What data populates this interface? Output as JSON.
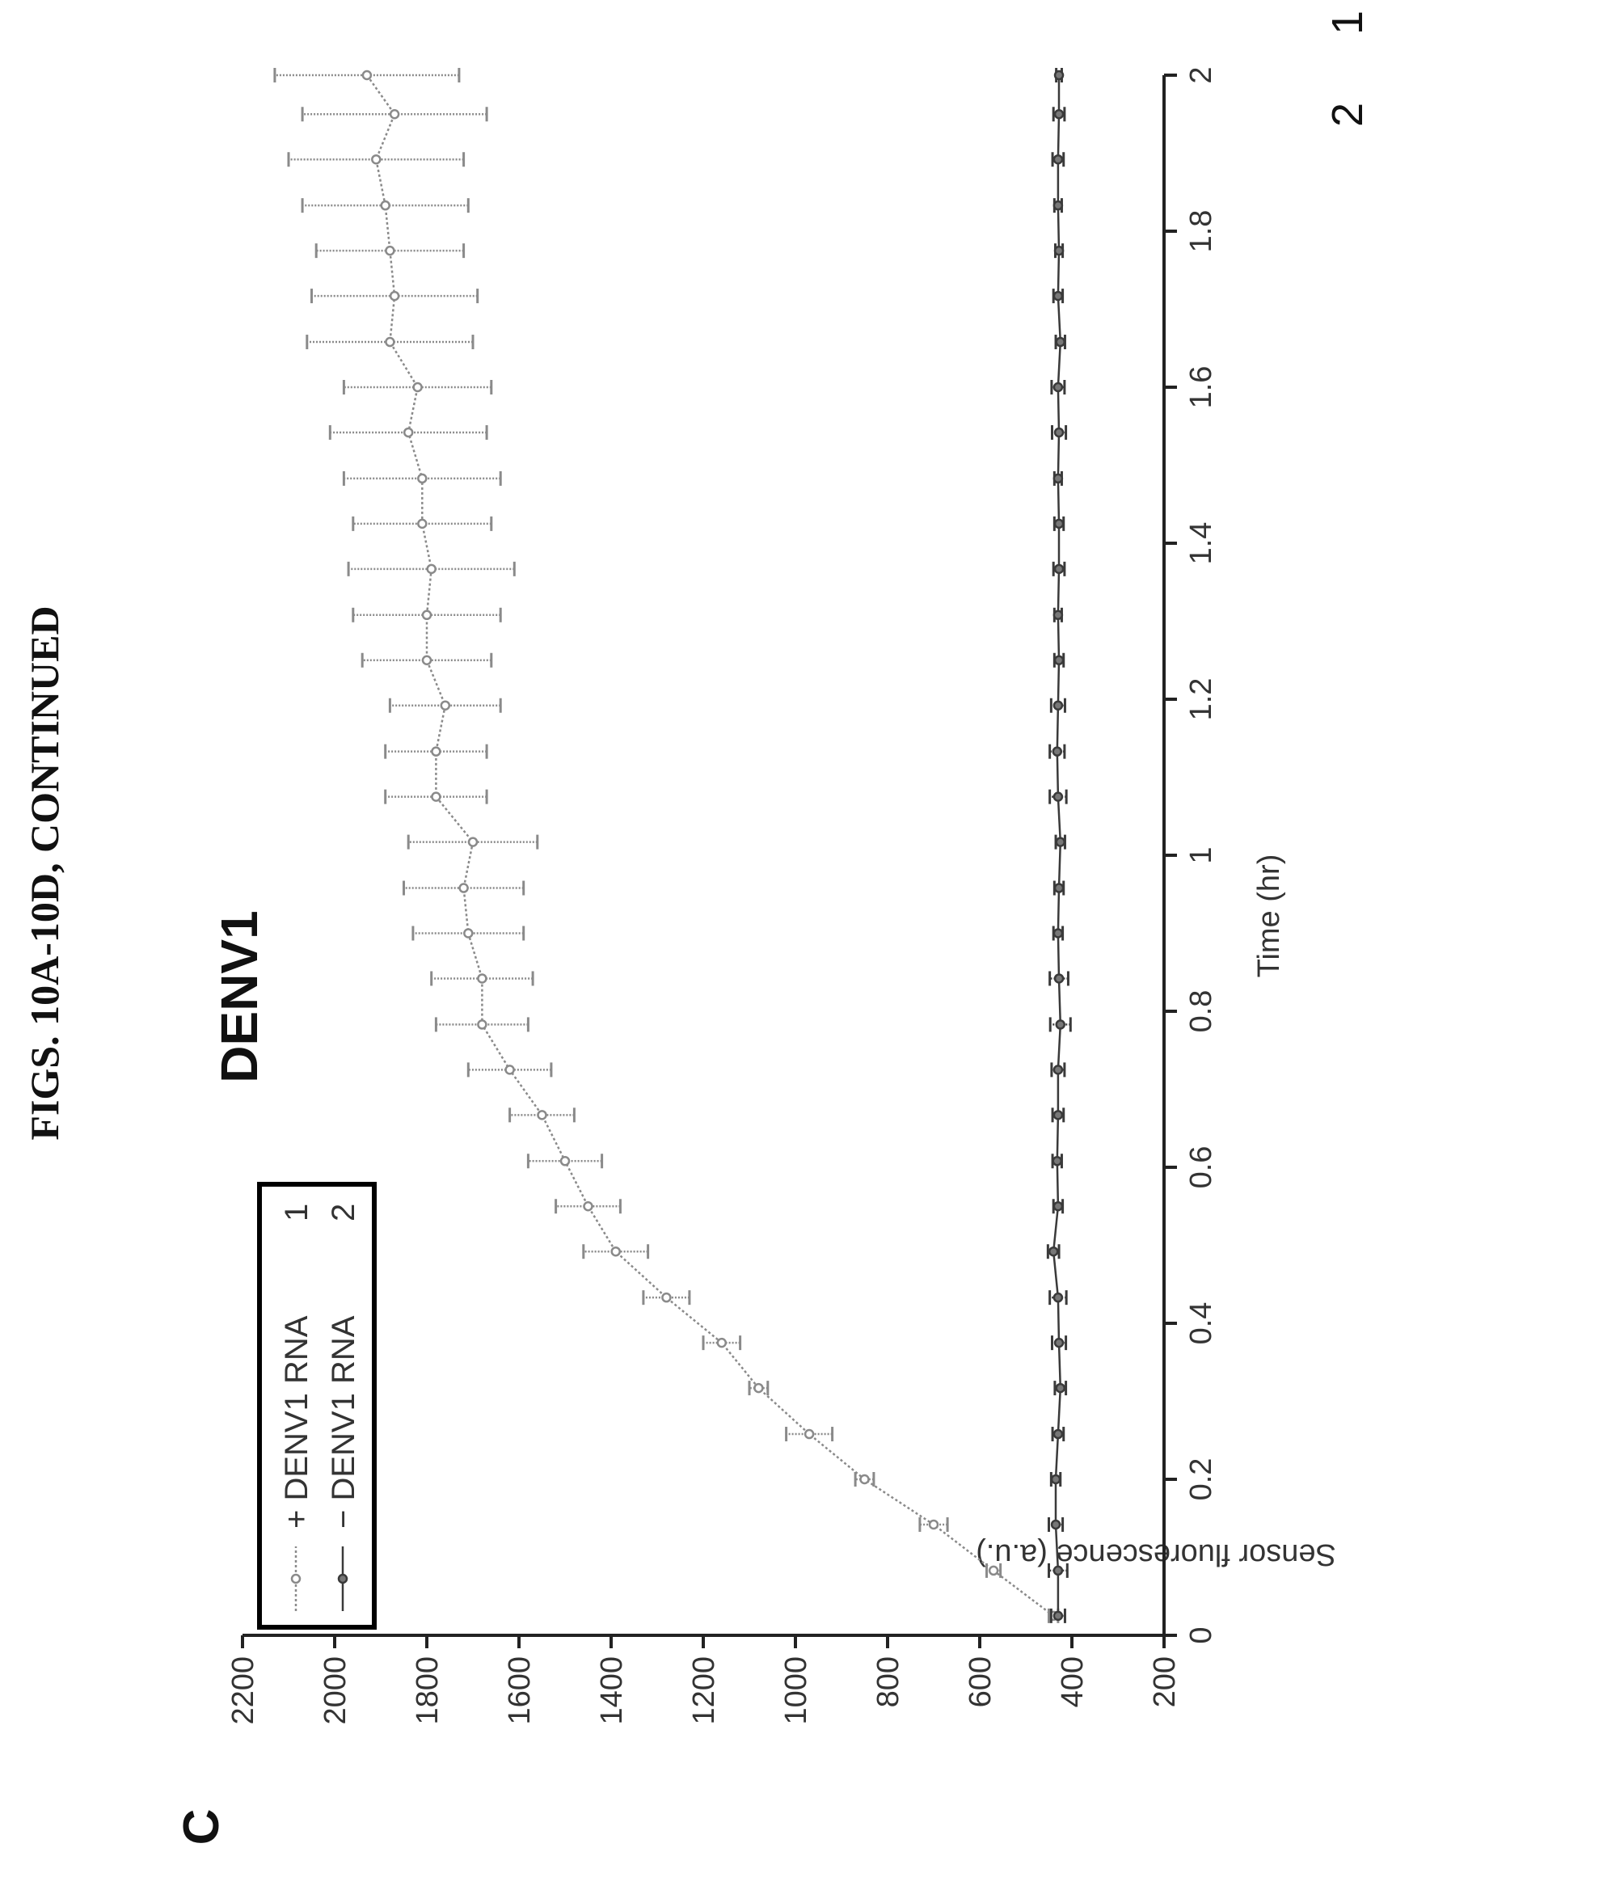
{
  "figure_caption": "FIGS. 10A-10D, CONTINUED",
  "panel_label": "C",
  "side_labels": [
    "1",
    "2"
  ],
  "colors": {
    "series_plus": "#8a8a8a",
    "series_minus": "#3a3a3a",
    "axis": "#222222"
  },
  "chart_data": {
    "type": "line",
    "title": "DENV1",
    "xlabel": "Time (hr)",
    "ylabel": "Sensor fluorescence (a.u.)",
    "xlim": [
      0,
      2
    ],
    "ylim": [
      200,
      2200
    ],
    "xticks": [
      0,
      0.2,
      0.4,
      0.6,
      0.8,
      1,
      1.2,
      1.4,
      1.6,
      1.8,
      2
    ],
    "xtick_labels": [
      "0",
      "0.2",
      "0.4",
      "0.6",
      "0.8",
      "1",
      "1.2",
      "1.4",
      "1.6",
      "1.8",
      "2"
    ],
    "yticks": [
      200,
      400,
      600,
      800,
      1000,
      1200,
      1400,
      1600,
      1800,
      2000,
      2200
    ],
    "ytick_labels": [
      "200",
      "400",
      "600",
      "800",
      "1000",
      "1200",
      "1400",
      "1600",
      "1800",
      "2000",
      "2200"
    ],
    "legend_position": "top-left",
    "legend": [
      {
        "label": "+ DENV1 RNA",
        "number": "1"
      },
      {
        "label": "− DENV1 RNA",
        "number": "2"
      }
    ],
    "series": [
      {
        "name": "+ DENV1 RNA",
        "x": [
          0.025,
          0.083,
          0.142,
          0.2,
          0.258,
          0.317,
          0.375,
          0.433,
          0.492,
          0.55,
          0.608,
          0.667,
          0.725,
          0.783,
          0.842,
          0.9,
          0.958,
          1.017,
          1.075,
          1.133,
          1.192,
          1.25,
          1.308,
          1.367,
          1.425,
          1.483,
          1.542,
          1.6,
          1.658,
          1.717,
          1.775,
          1.833,
          1.892,
          1.95,
          2.0
        ],
        "y": [
          440,
          570,
          700,
          850,
          970,
          1080,
          1160,
          1280,
          1390,
          1450,
          1500,
          1550,
          1620,
          1680,
          1680,
          1710,
          1720,
          1700,
          1780,
          1780,
          1760,
          1800,
          1800,
          1790,
          1810,
          1810,
          1840,
          1820,
          1880,
          1870,
          1880,
          1890,
          1910,
          1870,
          1930
        ],
        "error": [
          10,
          15,
          30,
          20,
          50,
          20,
          40,
          50,
          70,
          70,
          80,
          70,
          90,
          100,
          110,
          120,
          130,
          140,
          110,
          110,
          120,
          140,
          160,
          180,
          150,
          170,
          170,
          160,
          180,
          180,
          160,
          180,
          190,
          200,
          200
        ]
      },
      {
        "name": "− DENV1 RNA",
        "x": [
          0.025,
          0.083,
          0.142,
          0.2,
          0.258,
          0.317,
          0.375,
          0.433,
          0.492,
          0.55,
          0.608,
          0.667,
          0.725,
          0.783,
          0.842,
          0.9,
          0.958,
          1.017,
          1.075,
          1.133,
          1.192,
          1.25,
          1.308,
          1.367,
          1.425,
          1.483,
          1.542,
          1.6,
          1.658,
          1.717,
          1.775,
          1.833,
          1.892,
          1.95,
          2.0
        ],
        "y": [
          430,
          430,
          435,
          435,
          430,
          425,
          428,
          430,
          440,
          430,
          432,
          430,
          430,
          425,
          428,
          430,
          428,
          425,
          430,
          432,
          430,
          428,
          430,
          428,
          428,
          430,
          428,
          430,
          425,
          430,
          428,
          430,
          430,
          428,
          428
        ],
        "error": [
          15,
          20,
          15,
          10,
          12,
          12,
          15,
          18,
          12,
          10,
          10,
          12,
          14,
          22,
          20,
          10,
          10,
          10,
          18,
          16,
          15,
          10,
          8,
          12,
          10,
          8,
          15,
          14,
          10,
          10,
          8,
          8,
          12,
          12,
          6
        ]
      }
    ]
  }
}
